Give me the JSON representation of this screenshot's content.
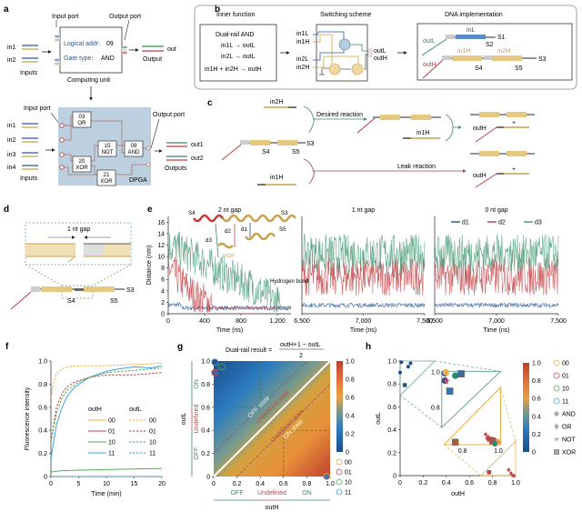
{
  "panels": {
    "a": {
      "label": "a",
      "input_port": "Input port",
      "output_port": "Output port",
      "unit_addr_label": "Logical addr:",
      "unit_addr_value": "09",
      "unit_gate_label": "Gate type:",
      "unit_gate_value": "AND",
      "computing_unit": "Computing unit",
      "inputs_label": "Inputs",
      "output_label": "Output",
      "out_label": "out",
      "in1": "in1",
      "in2": "in2",
      "dpga": {
        "inputs": [
          "in1",
          "in2",
          "in3",
          "in4"
        ],
        "gates": [
          {
            "addr": "03",
            "type": "OR"
          },
          {
            "addr": "15",
            "type": "NOT"
          },
          {
            "addr": "09",
            "type": "AND"
          },
          {
            "addr": "20",
            "type": "XOR"
          },
          {
            "addr": "21",
            "type": "XOR"
          }
        ],
        "outputs": [
          "out1",
          "out2"
        ],
        "outputs_label": "Outputs",
        "inputs_label": "Inputs",
        "input_port": "Input port",
        "output_port": "Output port",
        "name": "DPGA"
      }
    },
    "b": {
      "label": "b",
      "inner_function_title": "Inner function",
      "switching_title": "Switching scheme",
      "dna_title": "DNA implementation",
      "function_name": "Dual-rail AND",
      "rules": [
        "in1L → outL",
        "in2L → outL",
        "in1H + in2H → outH"
      ],
      "switch_inputs": [
        "in1L",
        "in1H",
        "in2L",
        "in2H"
      ],
      "switch_outputs": [
        "outL",
        "outH"
      ],
      "dna_labels": [
        "inL",
        "S1",
        "S2",
        "outL",
        "outH",
        "in1H",
        "in2H",
        "S3",
        "S4",
        "S5"
      ]
    },
    "c": {
      "label": "c",
      "in2H": "in2H",
      "in1H_top": "in1H",
      "in1H_bottom": "in1H",
      "desired": "Desired reaction",
      "leak": "Leak reaction",
      "S3": "S3",
      "S4": "S4",
      "S5": "S5",
      "outH": "outH",
      "plus": "+"
    },
    "d": {
      "label": "d",
      "gap": "1 nt gap",
      "S3": "S3",
      "S4": "S4",
      "S5": "S5"
    },
    "e": {
      "label": "e",
      "annotations": [
        "S4",
        "S3",
        "S5",
        "d1",
        "d2",
        "d3",
        "in1H",
        "Hydrogen bond"
      ]
    },
    "f": {
      "label": "f"
    },
    "g": {
      "label": "g",
      "formula_left": "Dual-rail result =",
      "formula_num": "outH+1 − outL",
      "formula_den": "2",
      "region_labels": [
        "OFF state",
        "Undefined state",
        "Undefined state",
        "ON state"
      ],
      "x_bands": [
        "OFF",
        "Undefined",
        "ON"
      ],
      "y_bands": [
        "OFF",
        "Undefined",
        "ON"
      ]
    },
    "h": {
      "label": "h"
    }
  },
  "chart_data": [
    {
      "id": "e1",
      "type": "line",
      "title": "2 nt gap",
      "xlabel": "Time (ns)",
      "ylabel": "Distance (nm)",
      "xlim": [
        0,
        1350
      ],
      "ylim": [
        0,
        17
      ],
      "xticks": [
        "0",
        "400",
        "800",
        "1,200"
      ],
      "yticks": [
        "0",
        "2",
        "4",
        "6",
        "8",
        "10",
        "12",
        "14",
        "16"
      ],
      "series": [
        {
          "name": "d1",
          "color": "#2a5a9e",
          "trend": [
            [
              0,
              1.5
            ],
            [
              130,
              1.6
            ],
            [
              150,
              1.0
            ],
            [
              1350,
              1.0
            ]
          ]
        },
        {
          "name": "d2",
          "color": "#c0474a",
          "trend": [
            [
              0,
              8
            ],
            [
              150,
              5.5
            ],
            [
              300,
              3
            ],
            [
              450,
              2
            ],
            [
              500,
              1.0
            ],
            [
              1350,
              1.0
            ]
          ]
        },
        {
          "name": "d3",
          "color": "#4a9a78",
          "trend": [
            [
              0,
              12
            ],
            [
              150,
              11
            ],
            [
              400,
              9
            ],
            [
              600,
              7
            ],
            [
              900,
              5
            ],
            [
              1100,
              3
            ],
            [
              1250,
              1.2
            ],
            [
              1350,
              1.2
            ]
          ]
        }
      ]
    },
    {
      "id": "e2",
      "type": "line",
      "title": "1 nt gap",
      "xlabel": "Time (ns)",
      "xlim": [
        6500,
        7500
      ],
      "ylim": [
        0,
        17
      ],
      "xticks": [
        "6,500",
        "7,000",
        "7,500"
      ],
      "series": [
        {
          "name": "d1",
          "color": "#2a5a9e",
          "mean": 1.5
        },
        {
          "name": "d2",
          "color": "#c0474a",
          "mean": 6.5
        },
        {
          "name": "d3",
          "color": "#4a9a78",
          "mean": 10.5
        }
      ]
    },
    {
      "id": "e3",
      "type": "line",
      "title": "0 nt gap",
      "xlabel": "Time (ns)",
      "xlim": [
        6500,
        7500
      ],
      "ylim": [
        0,
        17
      ],
      "xticks": [
        "6,500",
        "7,000",
        "7,500"
      ],
      "legend": [
        "d1",
        "d2",
        "d3"
      ],
      "legend_position": "top",
      "series": [
        {
          "name": "d1",
          "color": "#2a5a9e",
          "mean": 1.5
        },
        {
          "name": "d2",
          "color": "#c0474a",
          "mean": 6.5
        },
        {
          "name": "d3",
          "color": "#4a9a78",
          "mean": 10.5
        }
      ]
    },
    {
      "id": "f",
      "type": "line",
      "xlabel": "Time (min)",
      "ylabel": "Fluorescence intensity",
      "xlim": [
        0,
        20
      ],
      "ylim": [
        0,
        1.0
      ],
      "xticks": [
        "0",
        "5",
        "10",
        "15",
        "20"
      ],
      "yticks": [
        "0",
        "0.2",
        "0.4",
        "0.6",
        "0.8",
        "1.0"
      ],
      "legend_titles": [
        "outH",
        "outL"
      ],
      "legend_position": "center-right",
      "series": [
        {
          "name": "outH 00",
          "color": "#e8b04a",
          "dash": false,
          "x": [
            0,
            20
          ],
          "y": [
            0.0,
            0.0
          ]
        },
        {
          "name": "outH 01",
          "color": "#c0474a",
          "dash": false,
          "x": [
            0,
            20
          ],
          "y": [
            0.0,
            0.0
          ]
        },
        {
          "name": "outH 10",
          "color": "#55aa55",
          "dash": false,
          "x": [
            0,
            2,
            5,
            10,
            15,
            20
          ],
          "y": [
            0.04,
            0.05,
            0.055,
            0.06,
            0.065,
            0.07
          ]
        },
        {
          "name": "outH 11",
          "color": "#3aa7d8",
          "dash": false,
          "x": [
            0,
            1,
            2,
            3,
            4,
            5,
            7,
            10,
            12,
            15,
            18,
            20
          ],
          "y": [
            0.15,
            0.45,
            0.6,
            0.7,
            0.76,
            0.8,
            0.86,
            0.91,
            0.93,
            0.95,
            0.94,
            0.96
          ]
        },
        {
          "name": "outL 00",
          "color": "#e8b04a",
          "dash": true,
          "x": [
            0,
            0.5,
            1,
            2,
            3,
            5,
            10,
            15,
            20
          ],
          "y": [
            0.68,
            0.82,
            0.89,
            0.93,
            0.95,
            0.96,
            0.96,
            0.97,
            0.98
          ]
        },
        {
          "name": "outL 01",
          "color": "#c0474a",
          "dash": true,
          "x": [
            0,
            1,
            2,
            3,
            4,
            5,
            7,
            10,
            15,
            20
          ],
          "y": [
            0.3,
            0.6,
            0.72,
            0.78,
            0.81,
            0.83,
            0.86,
            0.88,
            0.88,
            0.9
          ]
        },
        {
          "name": "outL 10",
          "color": "#55aa55",
          "dash": true,
          "x": [
            0,
            1,
            2,
            3,
            5,
            7,
            10,
            15,
            20
          ],
          "y": [
            0.3,
            0.55,
            0.68,
            0.75,
            0.82,
            0.86,
            0.9,
            0.92,
            0.94
          ]
        },
        {
          "name": "outL 11",
          "color": "#3aa7d8",
          "dash": true,
          "x": [
            0,
            20
          ],
          "y": [
            0.0,
            0.0
          ]
        }
      ]
    },
    {
      "id": "g",
      "type": "heatmap",
      "xlabel": "outH",
      "ylabel": "outL",
      "xlim": [
        0,
        1
      ],
      "ylim": [
        0,
        1
      ],
      "xticks": [
        "0",
        "0.2",
        "0.4",
        "0.6",
        "0.8",
        "1.0"
      ],
      "yticks": [
        "0",
        "0.2",
        "0.4",
        "0.6",
        "0.8",
        "1.0"
      ],
      "colorbar": {
        "min": 0,
        "max": 1.0,
        "ticks": [
          "0",
          "0.2",
          "0.4",
          "0.6",
          "0.8",
          "1.0"
        ]
      },
      "legend": [
        {
          "name": "00",
          "color": "#e8b04a"
        },
        {
          "name": "01",
          "color": "#c0474a"
        },
        {
          "name": "10",
          "color": "#55aa55"
        },
        {
          "name": "11",
          "color": "#3aa7d8"
        }
      ],
      "points": [
        {
          "name": "11",
          "x": 0.01,
          "y": 0.99,
          "fill": "#2a4f8a"
        },
        {
          "name": "01",
          "x": 0.01,
          "y": 0.9,
          "fill": "#4a5aa0"
        },
        {
          "name": "10",
          "x": 0.07,
          "y": 0.95,
          "fill": "none"
        },
        {
          "name": "00",
          "x": 0.97,
          "y": 0.0,
          "fill": "#5a6aa8"
        }
      ]
    },
    {
      "id": "h",
      "type": "scatter",
      "xlabel": "outH",
      "ylabel": "outL",
      "xlim": [
        0,
        1
      ],
      "ylim": [
        0,
        1
      ],
      "xticks": [
        "0",
        "0.2",
        "0.4",
        "0.6",
        "0.8",
        "1.0"
      ],
      "yticks": [
        "0",
        "0.2",
        "0.4",
        "0.6",
        "0.8",
        "1.0"
      ],
      "colorbar": {
        "min": 0,
        "max": 1.0,
        "ticks": [
          "0",
          "0.2",
          "0.4",
          "0.6",
          "0.8",
          "1.0"
        ]
      },
      "legend": [
        {
          "name": "00",
          "marker": "circle-open",
          "color": "#e8b04a"
        },
        {
          "name": "01",
          "marker": "circle-open",
          "color": "#c0474a"
        },
        {
          "name": "10",
          "marker": "circle-open",
          "color": "#55aa55"
        },
        {
          "name": "11",
          "marker": "circle-open",
          "color": "#3aa7d8"
        },
        {
          "name": "AND",
          "marker": "circle",
          "color": "#aaaaaa"
        },
        {
          "name": "OR",
          "marker": "diamond",
          "color": "#aaaaaa"
        },
        {
          "name": "NOT",
          "marker": "star",
          "color": "#aaaaaa"
        },
        {
          "name": "XOR",
          "marker": "square",
          "color": "#aaaaaa"
        }
      ],
      "points": [
        {
          "x": 0.01,
          "y": 0.99,
          "m": "circle",
          "c": "#1f4e8c"
        },
        {
          "x": 0.0,
          "y": 0.9,
          "m": "circle",
          "c": "#1f4e8c"
        },
        {
          "x": 0.07,
          "y": 0.95,
          "m": "circle",
          "c": "#1f4e8c"
        },
        {
          "x": 0.09,
          "y": 0.98,
          "m": "circle",
          "c": "#1f4e8c"
        },
        {
          "x": 0.04,
          "y": 0.79,
          "m": "square",
          "c": "#1f4e8c"
        },
        {
          "x": 0.74,
          "y": 0.36,
          "m": "diamond",
          "c": "#c0474a"
        },
        {
          "x": 0.79,
          "y": 0.32,
          "m": "square",
          "c": "#c0474a"
        },
        {
          "x": 0.8,
          "y": 0.29,
          "m": "circle",
          "c": "#c0474a"
        },
        {
          "x": 0.84,
          "y": 0.31,
          "m": "star",
          "c": "#e8903a"
        },
        {
          "x": 0.77,
          "y": 0.03,
          "m": "square",
          "c": "#c0474a"
        },
        {
          "x": 0.94,
          "y": 0.05,
          "m": "diamond",
          "c": "#c0474a"
        },
        {
          "x": 0.96,
          "y": 0.02,
          "m": "diamond",
          "c": "#c0474a"
        },
        {
          "x": 0.98,
          "y": 0.0,
          "m": "circle",
          "c": "#c0474a"
        }
      ],
      "inset_upper": {
        "xticks": [],
        "yticks": [
          "0.8",
          "1.0"
        ],
        "points": [
          {
            "x": 0.1,
            "y": 0.97,
            "m": "circle",
            "c": "#2a5a9e"
          },
          {
            "x": 0.13,
            "y": 0.985,
            "m": "circle",
            "c": "#e8b04a"
          },
          {
            "x": 0.42,
            "y": 0.93,
            "m": "circle",
            "c": "#2a8a78"
          },
          {
            "x": 0.6,
            "y": 0.96,
            "m": "square",
            "c": "#3a6aa0"
          },
          {
            "x": 0.1,
            "y": 0.85,
            "m": "circle",
            "c": "#2a4f8a"
          },
          {
            "x": 0.14,
            "y": 0.84,
            "m": "star",
            "c": "#c04a70"
          },
          {
            "x": 0.25,
            "y": 0.68,
            "m": "square",
            "c": "#2a7ac0"
          }
        ]
      },
      "inset_lower": {
        "xticks": [
          "0.8",
          "1.0"
        ],
        "points": [
          {
            "x": 0.2,
            "y": 0.08,
            "m": "square",
            "c": "#a06040"
          },
          {
            "x": 0.78,
            "y": 0.2,
            "m": "diamond",
            "c": "#c0474a"
          },
          {
            "x": 0.86,
            "y": 0.12,
            "m": "square",
            "c": "#c0474a"
          },
          {
            "x": 0.9,
            "y": 0.04,
            "m": "circle",
            "c": "#2a8a78"
          },
          {
            "x": 0.97,
            "y": 0.08,
            "m": "star",
            "c": "#e8903a"
          }
        ]
      }
    }
  ]
}
